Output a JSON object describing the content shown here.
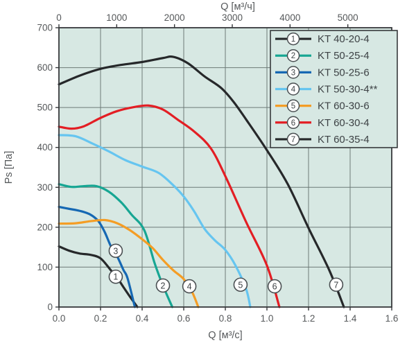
{
  "page": {
    "background": "#ffffff"
  },
  "styles": {
    "plot_bg": "#d7e8e3",
    "grid_color": "#6c7a77",
    "axis_color": "#36393b",
    "tick_text_color": "#55585a",
    "legend_text_color": "#3d4245",
    "marker_stroke": "#4a4f52",
    "marker_fill": "#ffffff",
    "marker_text_color": "#3d4245"
  },
  "chart_data": {
    "type": "line",
    "title": "",
    "grid": true,
    "legend_position": "top-right",
    "axes": {
      "top": {
        "label": "Q [м³/ч]",
        "ticks": [
          {
            "label": "0",
            "value": 0
          },
          {
            "label": "1000",
            "value": 1000
          },
          {
            "label": "2000",
            "value": 2000
          },
          {
            "label": "3000",
            "value": 3000
          },
          {
            "label": "4000",
            "value": 4000
          },
          {
            "label": "5000",
            "value": 5000
          }
        ],
        "seconds_per_hour": 3600
      },
      "bottom": {
        "label": "Q [м³/c]",
        "range": [
          0,
          1.6
        ],
        "ticks": [
          {
            "label": "0.0",
            "value": 0.0
          },
          {
            "label": "0.2",
            "value": 0.2
          },
          {
            "label": "0.4",
            "value": 0.4
          },
          {
            "label": "0.6",
            "value": 0.6
          },
          {
            "label": "0.8",
            "value": 0.8
          },
          {
            "label": "1.0",
            "value": 1.0
          },
          {
            "label": "1.2",
            "value": 1.2
          },
          {
            "label": "1.4",
            "value": 1.4
          },
          {
            "label": "1.6",
            "value": 1.6
          }
        ]
      },
      "left": {
        "label": "Ps [Па]",
        "range": [
          0,
          700
        ],
        "ticks": [
          {
            "label": "0",
            "value": 0
          },
          {
            "label": "100",
            "value": 100
          },
          {
            "label": "200",
            "value": 200
          },
          {
            "label": "300",
            "value": 300
          },
          {
            "label": "400",
            "value": 400
          },
          {
            "label": "500",
            "value": 500
          },
          {
            "label": "600",
            "value": 600
          },
          {
            "label": "700",
            "value": 700
          }
        ]
      }
    },
    "series": [
      {
        "num": "1",
        "label": "KT 40-20-4",
        "color": "#26282a",
        "points": [
          [
            0,
            152
          ],
          [
            0.05,
            141
          ],
          [
            0.1,
            134
          ],
          [
            0.15,
            131
          ],
          [
            0.2,
            122
          ],
          [
            0.25,
            92
          ],
          [
            0.277,
            76
          ],
          [
            0.31,
            50
          ],
          [
            0.34,
            27
          ],
          [
            0.377,
            0
          ]
        ]
      },
      {
        "num": "2",
        "label": "KT 50-25-4",
        "color": "#17a693",
        "points": [
          [
            0,
            308
          ],
          [
            0.06,
            301
          ],
          [
            0.12,
            303
          ],
          [
            0.18,
            303
          ],
          [
            0.24,
            289
          ],
          [
            0.3,
            262
          ],
          [
            0.35,
            231
          ],
          [
            0.41,
            193
          ],
          [
            0.46,
            110
          ],
          [
            0.5,
            54
          ],
          [
            0.545,
            0
          ]
        ]
      },
      {
        "num": "3",
        "label": "KT 50-25-6",
        "color": "#1668b3",
        "points": [
          [
            0,
            251
          ],
          [
            0.05,
            246
          ],
          [
            0.1,
            241
          ],
          [
            0.15,
            232
          ],
          [
            0.19,
            215
          ],
          [
            0.22,
            188
          ],
          [
            0.25,
            152
          ],
          [
            0.28,
            127
          ],
          [
            0.31,
            93
          ],
          [
            0.33,
            72
          ],
          [
            0.365,
            0
          ]
        ]
      },
      {
        "num": "4",
        "label": "KT 50-30-4**",
        "color": "#66c5f0",
        "points": [
          [
            0,
            431
          ],
          [
            0.08,
            428
          ],
          [
            0.16,
            410
          ],
          [
            0.24,
            390
          ],
          [
            0.32,
            368
          ],
          [
            0.4,
            352
          ],
          [
            0.48,
            336
          ],
          [
            0.55,
            305
          ],
          [
            0.6,
            277
          ],
          [
            0.65,
            240
          ],
          [
            0.7,
            196
          ],
          [
            0.75,
            167
          ],
          [
            0.8,
            143
          ],
          [
            0.85,
            103
          ],
          [
            0.9,
            45
          ],
          [
            0.92,
            0
          ]
        ]
      },
      {
        "num": "5",
        "label": "KT 60-30-6",
        "color": "#f49d25",
        "points": [
          [
            0,
            209
          ],
          [
            0.08,
            210
          ],
          [
            0.15,
            215
          ],
          [
            0.22,
            218
          ],
          [
            0.28,
            210
          ],
          [
            0.34,
            193
          ],
          [
            0.4,
            170
          ],
          [
            0.45,
            148
          ],
          [
            0.5,
            118
          ],
          [
            0.55,
            92
          ],
          [
            0.6,
            70
          ],
          [
            0.64,
            38
          ],
          [
            0.67,
            0
          ]
        ]
      },
      {
        "num": "6",
        "label": "KT 60-30-4",
        "color": "#e31e24",
        "points": [
          [
            0,
            452
          ],
          [
            0.06,
            447
          ],
          [
            0.12,
            453
          ],
          [
            0.2,
            474
          ],
          [
            0.28,
            491
          ],
          [
            0.36,
            501
          ],
          [
            0.43,
            505
          ],
          [
            0.5,
            495
          ],
          [
            0.57,
            470
          ],
          [
            0.65,
            440
          ],
          [
            0.73,
            398
          ],
          [
            0.8,
            328
          ],
          [
            0.9,
            213
          ],
          [
            1.0,
            104
          ],
          [
            1.06,
            0
          ]
        ]
      },
      {
        "num": "7",
        "label": "KT 60-35-4",
        "color": "#26282a",
        "points": [
          [
            0,
            558
          ],
          [
            0.1,
            580
          ],
          [
            0.2,
            597
          ],
          [
            0.3,
            607
          ],
          [
            0.4,
            614
          ],
          [
            0.5,
            624
          ],
          [
            0.55,
            627
          ],
          [
            0.62,
            611
          ],
          [
            0.7,
            578
          ],
          [
            0.78,
            549
          ],
          [
            0.84,
            514
          ],
          [
            0.9,
            470
          ],
          [
            1.0,
            393
          ],
          [
            1.1,
            308
          ],
          [
            1.2,
            198
          ],
          [
            1.3,
            92
          ],
          [
            1.37,
            0
          ]
        ]
      }
    ],
    "curve_markers": [
      {
        "num": "1",
        "q": 0.273,
        "ps": 76
      },
      {
        "num": "2",
        "q": 0.5,
        "ps": 54
      },
      {
        "num": "3",
        "q": 0.273,
        "ps": 141
      },
      {
        "num": "4",
        "q": 0.627,
        "ps": 52
      },
      {
        "num": "5",
        "q": 0.873,
        "ps": 56
      },
      {
        "num": "6",
        "q": 1.037,
        "ps": 52
      },
      {
        "num": "7",
        "q": 1.333,
        "ps": 56
      }
    ]
  }
}
